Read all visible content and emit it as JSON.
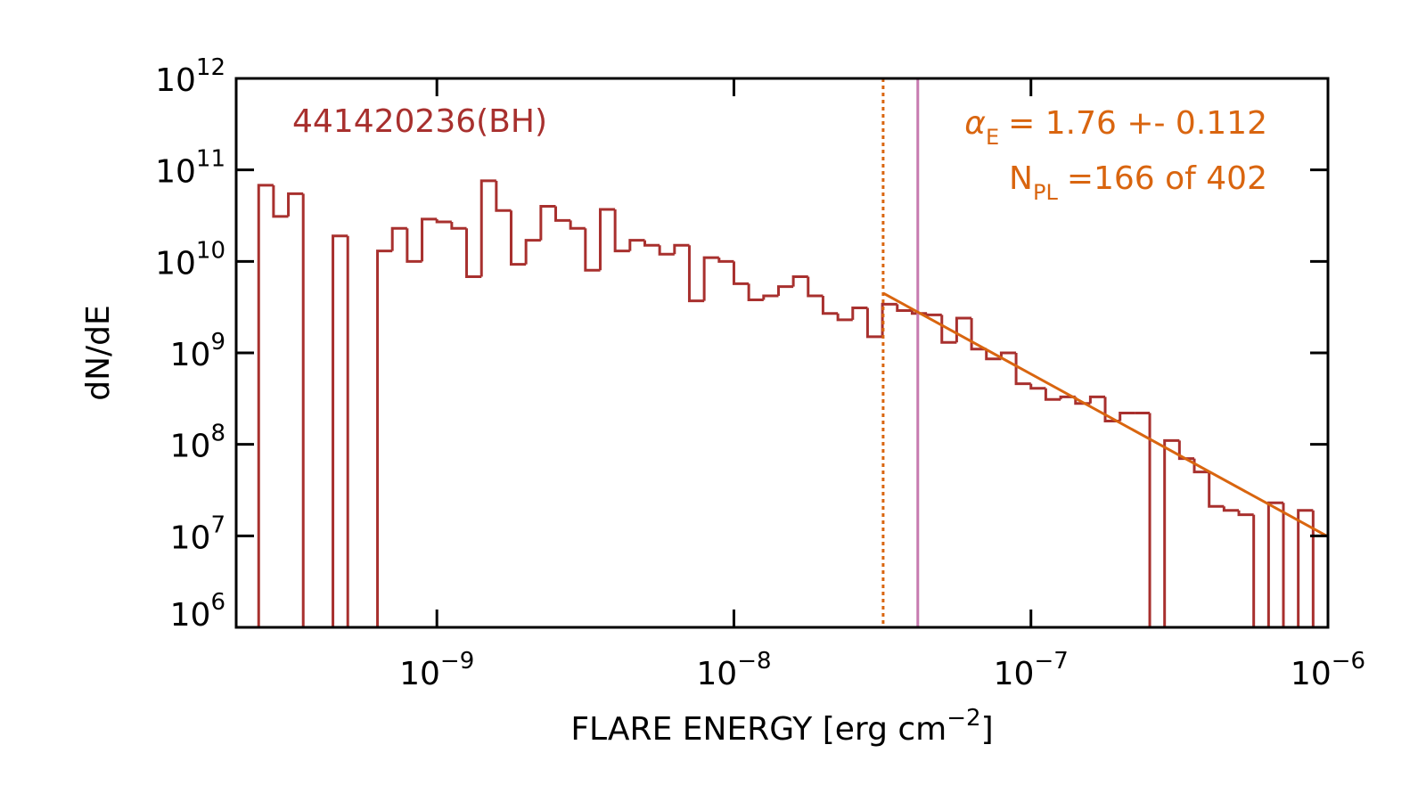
{
  "chart_data": {
    "type": "histogram",
    "xlabel": {
      "text": "FLARE ENERGY [erg cm",
      "power": "−2",
      "end": "]"
    },
    "ylabel": "dN/dE",
    "log_x": true,
    "log_y": true,
    "xlim": [
      2.11e-10,
      1e-06
    ],
    "ylim": [
      1000000.0,
      1000000000000.0
    ],
    "xticks": [
      {
        "value": 1e-09,
        "label": "10",
        "power": "−9"
      },
      {
        "value": 1e-08,
        "label": "10",
        "power": "−8"
      },
      {
        "value": 1e-07,
        "label": "10",
        "power": "−7"
      },
      {
        "value": 1e-06,
        "label": "10",
        "power": "−6"
      }
    ],
    "yticks": [
      {
        "value": 1000000.0,
        "label": "10",
        "power": "6"
      },
      {
        "value": 10000000.0,
        "label": "10",
        "power": "7"
      },
      {
        "value": 100000000.0,
        "label": "10",
        "power": "8"
      },
      {
        "value": 1000000000.0,
        "label": "10",
        "power": "9"
      },
      {
        "value": 10000000000.0,
        "label": "10",
        "power": "10"
      },
      {
        "value": 100000000000.0,
        "label": "10",
        "power": "11"
      },
      {
        "value": 1000000000000.0,
        "label": "10",
        "power": "12"
      }
    ],
    "color": "#a8302e",
    "bins": [
      2.512e-10,
      2.818e-10,
      3.162e-10,
      3.548e-10,
      3.981e-10,
      4.467e-10,
      5.012e-10,
      5.623e-10,
      6.31e-10,
      7.079e-10,
      7.943e-10,
      8.913e-10,
      1e-09,
      1.122e-09,
      1.259e-09,
      1.413e-09,
      1.585e-09,
      1.778e-09,
      1.995e-09,
      2.239e-09,
      2.512e-09,
      2.818e-09,
      3.162e-09,
      3.548e-09,
      3.981e-09,
      4.467e-09,
      5.012e-09,
      5.623e-09,
      6.31e-09,
      7.079e-09,
      7.943e-09,
      8.913e-09,
      1e-08,
      1.122e-08,
      1.259e-08,
      1.413e-08,
      1.585e-08,
      1.778e-08,
      1.995e-08,
      2.239e-08,
      2.512e-08,
      2.818e-08,
      3.162e-08,
      3.548e-08,
      3.981e-08,
      4.467e-08,
      5.012e-08,
      5.623e-08,
      6.31e-08,
      7.079e-08,
      7.943e-08,
      8.913e-08,
      1e-07,
      1.122e-07,
      1.259e-07,
      1.413e-07,
      1.585e-07,
      1.778e-07,
      1.995e-07,
      2.239e-07,
      2.512e-07,
      2.818e-07,
      3.162e-07,
      3.548e-07,
      3.981e-07,
      4.467e-07,
      5.012e-07,
      5.623e-07,
      6.31e-07,
      7.079e-07,
      7.943e-07,
      8.913e-07
    ],
    "values": [
      68000000000.0,
      31000000000.0,
      55000000000.0,
      0,
      0,
      19000000000.0,
      0,
      0,
      13000000000.0,
      23000000000.0,
      10000000000.0,
      29000000000.0,
      27000000000.0,
      23000000000.0,
      6800000000.0,
      76000000000.0,
      36000000000.0,
      9300000000.0,
      17000000000.0,
      40000000000.0,
      28000000000.0,
      23000000000.0,
      8000000000.0,
      37000000000.0,
      13000000000.0,
      17000000000.0,
      15000000000.0,
      12000000000.0,
      15000000000.0,
      3700000000.0,
      11000000000.0,
      10000000000.0,
      5700000000.0,
      3800000000.0,
      4200000000.0,
      5300000000.0,
      6800000000.0,
      4200000000.0,
      2700000000.0,
      2300000000.0,
      3100000000.0,
      1500000000.0,
      3400000000.0,
      2900000000.0,
      2700000000.0,
      2600000000.0,
      1300000000.0,
      2400000000.0,
      1100000000.0,
      860000000.0,
      1000000000.0,
      460000000.0,
      410000000.0,
      310000000.0,
      330000000.0,
      280000000.0,
      330000000.0,
      180000000.0,
      220000000.0,
      220000000.0,
      0,
      110000000.0,
      70000000.0,
      50000000.0,
      21000000.0,
      19000000.0,
      17000000.0,
      0,
      23000000.0,
      0,
      19000000.0
    ],
    "fit_line": {
      "color": "#d9650f",
      "x": [
        3.18e-08,
        1e-06
      ],
      "values": [
        4500000000.0,
        9800000.0
      ]
    },
    "threshold_line": {
      "color": "#d9650f",
      "x": 3.18e-08,
      "style": "dotted"
    },
    "marker_line": {
      "color": "#c77bb0",
      "x": 4.16e-08
    },
    "annotations": {
      "id": {
        "text": "441420236(BH)",
        "color": "#a8302e"
      },
      "alpha": {
        "symbol": "α",
        "subscript": "E",
        "text": "= 1.76 +- 0.112",
        "color": "#d9650f"
      },
      "npl": {
        "symbol": "N",
        "subscript": "PL",
        "text": "=166 of 402",
        "color": "#d9650f"
      }
    }
  }
}
